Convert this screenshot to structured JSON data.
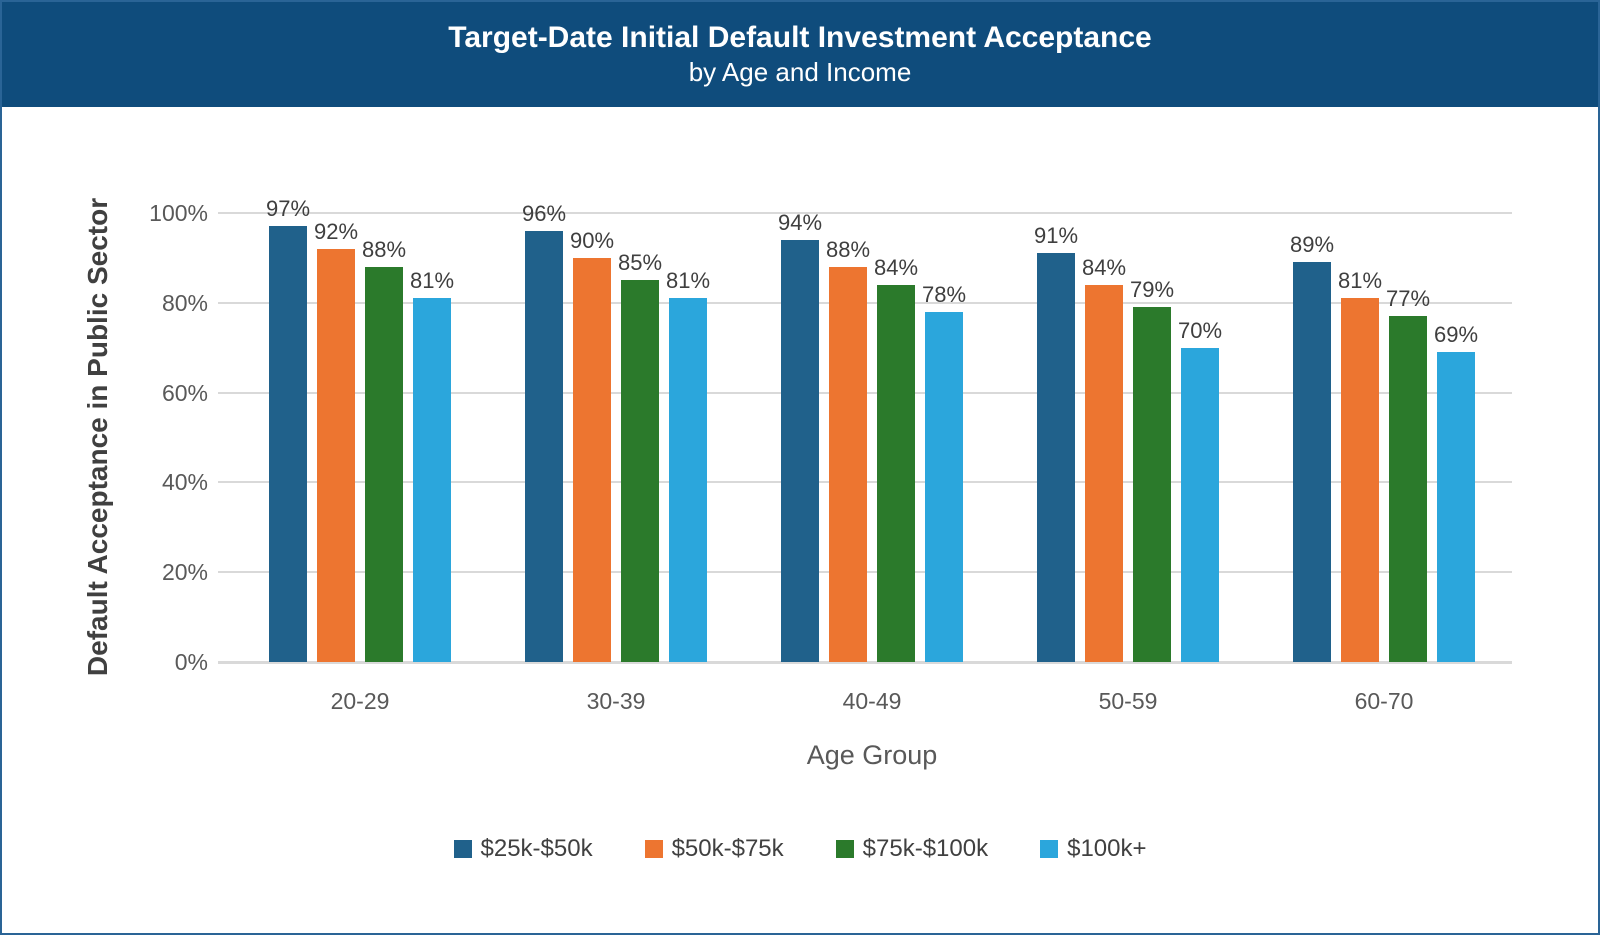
{
  "header": {
    "background": "#0F4C7C",
    "text_color": "#FFFFFF"
  },
  "chart_data": {
    "type": "bar",
    "title": "Target-Date Initial Default Investment Acceptance",
    "subtitle": "by Age and Income",
    "categories": [
      "20-29",
      "30-39",
      "40-49",
      "50-59",
      "60-70"
    ],
    "series": [
      {
        "name": "$25k-$50k",
        "color": "#20618B",
        "values": [
          97,
          96,
          94,
          91,
          89
        ]
      },
      {
        "name": "$50k-$75k",
        "color": "#ED7530",
        "values": [
          92,
          90,
          88,
          84,
          81
        ]
      },
      {
        "name": "$75k-$100k",
        "color": "#2B7A2B",
        "values": [
          88,
          85,
          84,
          79,
          77
        ]
      },
      {
        "name": "$100k+",
        "color": "#2BA6DC",
        "values": [
          81,
          81,
          78,
          70,
          69
        ]
      }
    ],
    "xlabel": "Age Group",
    "ylabel": "Default Acceptance in Public Sector",
    "ylim": [
      0,
      100
    ],
    "yticks": [
      {
        "value": 0,
        "label": "0%"
      },
      {
        "value": 20,
        "label": "20%"
      },
      {
        "value": 40,
        "label": "40%"
      },
      {
        "value": 60,
        "label": "60%"
      },
      {
        "value": 80,
        "label": "80%"
      },
      {
        "value": 100,
        "label": "100%"
      }
    ],
    "value_suffix": "%",
    "grid": true,
    "gridline_color": "#D9D9D9",
    "legend_position": "bottom"
  }
}
